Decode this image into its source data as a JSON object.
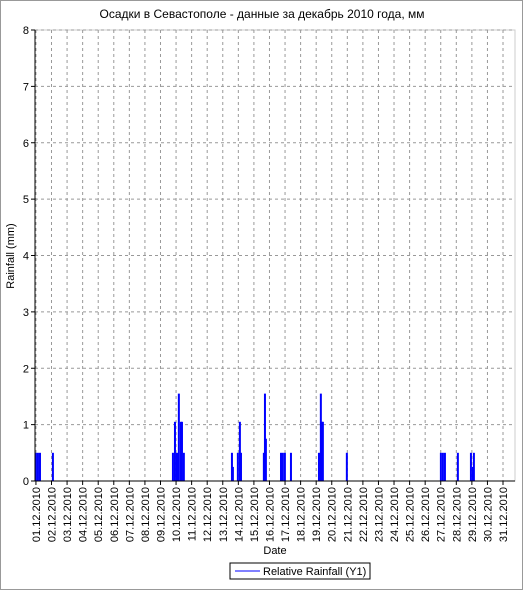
{
  "chart_data": {
    "type": "bar",
    "title": "Осадки в Севастополе - данные за декабрь 2010 года, мм",
    "x_label": "Date",
    "y_label": "Rainfall (mm)",
    "xlim": [
      0.94,
      31.77
    ],
    "ylim": [
      0,
      8
    ],
    "yticks": [
      0,
      1,
      2,
      3,
      4,
      5,
      6,
      7,
      8
    ],
    "xticks": [
      {
        "value": 1,
        "label": "01.12.2010"
      },
      {
        "value": 2,
        "label": "02.12.2010"
      },
      {
        "value": 3,
        "label": "03.12.2010"
      },
      {
        "value": 4,
        "label": "04.12.2010"
      },
      {
        "value": 5,
        "label": "05.12.2010"
      },
      {
        "value": 6,
        "label": "06.12.2010"
      },
      {
        "value": 7,
        "label": "07.12.2010"
      },
      {
        "value": 8,
        "label": "08.12.2010"
      },
      {
        "value": 9,
        "label": "09.12.2010"
      },
      {
        "value": 10,
        "label": "10.12.2010"
      },
      {
        "value": 11,
        "label": "11.12.2010"
      },
      {
        "value": 12,
        "label": "12.12.2010"
      },
      {
        "value": 13,
        "label": "13.12.2010"
      },
      {
        "value": 14,
        "label": "14.12.2010"
      },
      {
        "value": 15,
        "label": "15.12.2010"
      },
      {
        "value": 16,
        "label": "16.12.2010"
      },
      {
        "value": 17,
        "label": "17.12.2010"
      },
      {
        "value": 18,
        "label": "18.12.2010"
      },
      {
        "value": 19,
        "label": "19.12.2010"
      },
      {
        "value": 20,
        "label": "20.12.2010"
      },
      {
        "value": 21,
        "label": "21.12.2010"
      },
      {
        "value": 22,
        "label": "22.12.2010"
      },
      {
        "value": 23,
        "label": "23.12.2010"
      },
      {
        "value": 24,
        "label": "24.12.2010"
      },
      {
        "value": 25,
        "label": "25.12.2010"
      },
      {
        "value": 26,
        "label": "26.12.2010"
      },
      {
        "value": 27,
        "label": "27.12.2010"
      },
      {
        "value": 28,
        "label": "28.12.2010"
      },
      {
        "value": 29,
        "label": "29.12.2010"
      },
      {
        "value": 30,
        "label": "30.12.2010"
      },
      {
        "value": 31,
        "label": "31.12.2010"
      }
    ],
    "grid": true,
    "legend": "bottom",
    "series": [
      {
        "name": "Relative Rainfall (Y1)",
        "color": "#0000ff",
        "x": [
          1.0,
          1.13,
          1.26,
          2.09,
          9.8,
          9.93,
          10.06,
          10.18,
          10.31,
          10.38,
          10.5,
          13.59,
          13.65,
          13.97,
          14.1,
          14.17,
          15.64,
          15.71,
          15.77,
          16.74,
          16.86,
          16.99,
          17.38,
          19.18,
          19.3,
          19.37,
          19.43,
          20.97,
          27.01,
          27.14,
          27.27,
          28.1,
          28.94,
          29.07,
          29.13
        ],
        "values": [
          0.5,
          0.5,
          0.5,
          0.5,
          0.5,
          1.05,
          0.5,
          1.55,
          1.05,
          1.05,
          0.5,
          0.5,
          0.25,
          0.5,
          1.05,
          0.5,
          0.5,
          1.55,
          0.75,
          0.5,
          0.5,
          0.5,
          0.5,
          0.5,
          1.55,
          1.05,
          1.05,
          0.5,
          0.5,
          0.5,
          0.5,
          0.5,
          0.5,
          0.25,
          0.5
        ]
      }
    ]
  }
}
